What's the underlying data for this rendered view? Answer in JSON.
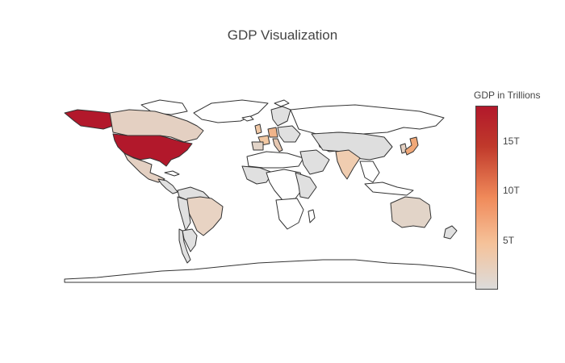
{
  "title": "GDP Visualization",
  "colorbar": {
    "title": "GDP in Trillions",
    "min": 0,
    "max": 18.6,
    "ticks": [
      {
        "value": 5,
        "label": "5T"
      },
      {
        "value": 10,
        "label": "10T"
      },
      {
        "value": 15,
        "label": "15T"
      }
    ],
    "colors": [
      "#dcdcdc",
      "#f5c29a",
      "#f08a5a",
      "#c0392b",
      "#b2182b"
    ]
  },
  "chart_data": {
    "type": "choropleth",
    "projection": "equirectangular",
    "variable": "GDP in Trillions",
    "range": [
      0,
      18.6
    ],
    "regions": [
      {
        "name": "United States",
        "value": 18.6
      },
      {
        "name": "Japan",
        "value": 4.9
      },
      {
        "name": "Germany",
        "value": 3.5
      },
      {
        "name": "United Kingdom",
        "value": 2.6
      },
      {
        "name": "France",
        "value": 2.5
      },
      {
        "name": "India",
        "value": 2.3
      },
      {
        "name": "Italy",
        "value": 1.9
      },
      {
        "name": "Brazil",
        "value": 1.8
      },
      {
        "name": "Canada",
        "value": 1.5
      },
      {
        "name": "Australia",
        "value": 1.3
      },
      {
        "name": "Spain",
        "value": 1.2
      },
      {
        "name": "Mexico",
        "value": 1.1
      }
    ]
  }
}
